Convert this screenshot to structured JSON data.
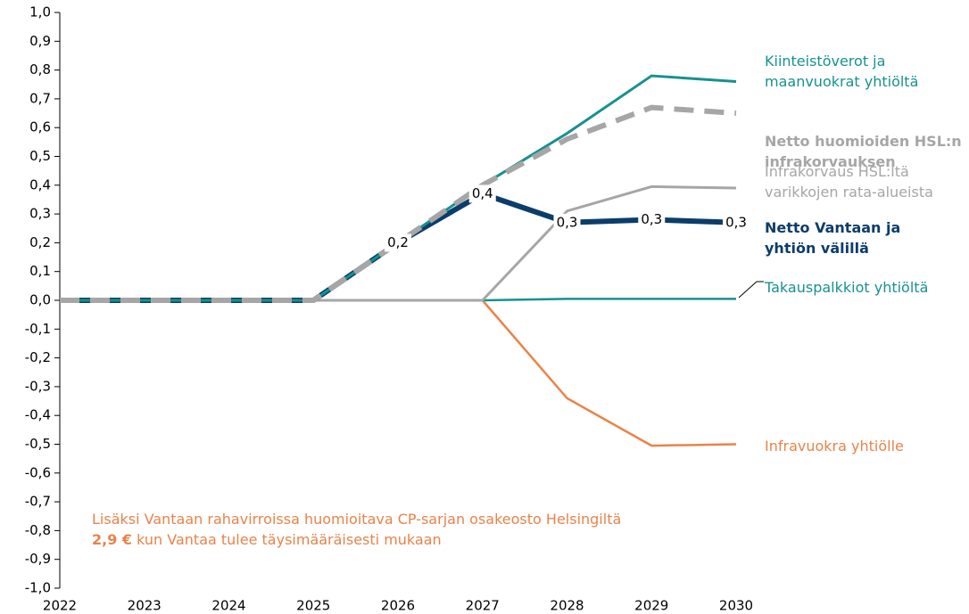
{
  "chart_data": {
    "type": "line",
    "x": [
      2022,
      2023,
      2024,
      2025,
      2026,
      2027,
      2028,
      2029,
      2030
    ],
    "xlim": [
      2022,
      2030
    ],
    "xticks": [
      2022,
      2023,
      2024,
      2025,
      2026,
      2027,
      2028,
      2029,
      2030
    ],
    "ylim": [
      -1.0,
      1.0
    ],
    "yticks": [
      {
        "value": 1.0,
        "label": "1,0"
      },
      {
        "value": 0.9,
        "label": "0,9"
      },
      {
        "value": 0.8,
        "label": "0,8"
      },
      {
        "value": 0.7,
        "label": "0,7"
      },
      {
        "value": 0.6,
        "label": "0,6"
      },
      {
        "value": 0.5,
        "label": "0,5"
      },
      {
        "value": 0.4,
        "label": "0,4"
      },
      {
        "value": 0.3,
        "label": "0,3"
      },
      {
        "value": 0.2,
        "label": "0,2"
      },
      {
        "value": 0.1,
        "label": "0,1"
      },
      {
        "value": 0.0,
        "label": "0,0"
      },
      {
        "value": -0.1,
        "label": "-0,1"
      },
      {
        "value": -0.2,
        "label": "-0,2"
      },
      {
        "value": -0.3,
        "label": "-0,3"
      },
      {
        "value": -0.4,
        "label": "-0,4"
      },
      {
        "value": -0.5,
        "label": "-0,5"
      },
      {
        "value": -0.6,
        "label": "-0,6"
      },
      {
        "value": -0.7,
        "label": "-0,7"
      },
      {
        "value": -0.8,
        "label": "-0,8"
      },
      {
        "value": -0.9,
        "label": "-0,9"
      },
      {
        "value": -1.0,
        "label": "-1,0"
      }
    ],
    "series": [
      {
        "name": "Infravuokra yhtiölle",
        "color": "#e8834a",
        "values": [
          0,
          0,
          0,
          0,
          0,
          0,
          -0.34,
          -0.505,
          -0.5
        ]
      },
      {
        "name": "Takauspalkkiot yhtiöltä",
        "color": "#17918f",
        "values": [
          0,
          0,
          0,
          0,
          0,
          0,
          0.005,
          0.005,
          0.005
        ]
      },
      {
        "name": "Infrakorvaus HSL:ltä varikkojen rata-alueista",
        "color": "#a6a6a6",
        "values": [
          0,
          0,
          0,
          0,
          0,
          0,
          0.31,
          0.395,
          0.39
        ]
      },
      {
        "name": "Netto Vantaan ja yhtiön välillä",
        "color": "#0b3d6b",
        "values": [
          0,
          0,
          0,
          0,
          0.2,
          0.37,
          0.27,
          0.28,
          0.27
        ],
        "value_labels": [
          null,
          null,
          null,
          null,
          "0,2",
          "0,4",
          "0,3",
          "0,3",
          "0,3"
        ]
      },
      {
        "name": "Kiinteistöverot ja maanvuokrat yhtiöltä",
        "color": "#17918f",
        "values": [
          0,
          0,
          0,
          0,
          0.2,
          0.4,
          0.58,
          0.78,
          0.76
        ]
      },
      {
        "name": "Netto huomioiden HSL:n infrakorvauksen",
        "color": "#a6a6a6",
        "dashed": true,
        "values": [
          0,
          0,
          0,
          0,
          0.2,
          0.4,
          0.56,
          0.67,
          0.65
        ]
      }
    ],
    "annotation": {
      "line1": "Lisäksi Vantaan rahavirroissa huomioitava CP-sarjan osakeosto Helsingiltä",
      "bold": "2,9 €",
      "rest": " kun Vantaa tulee täysimääräisesti mukaan"
    }
  }
}
